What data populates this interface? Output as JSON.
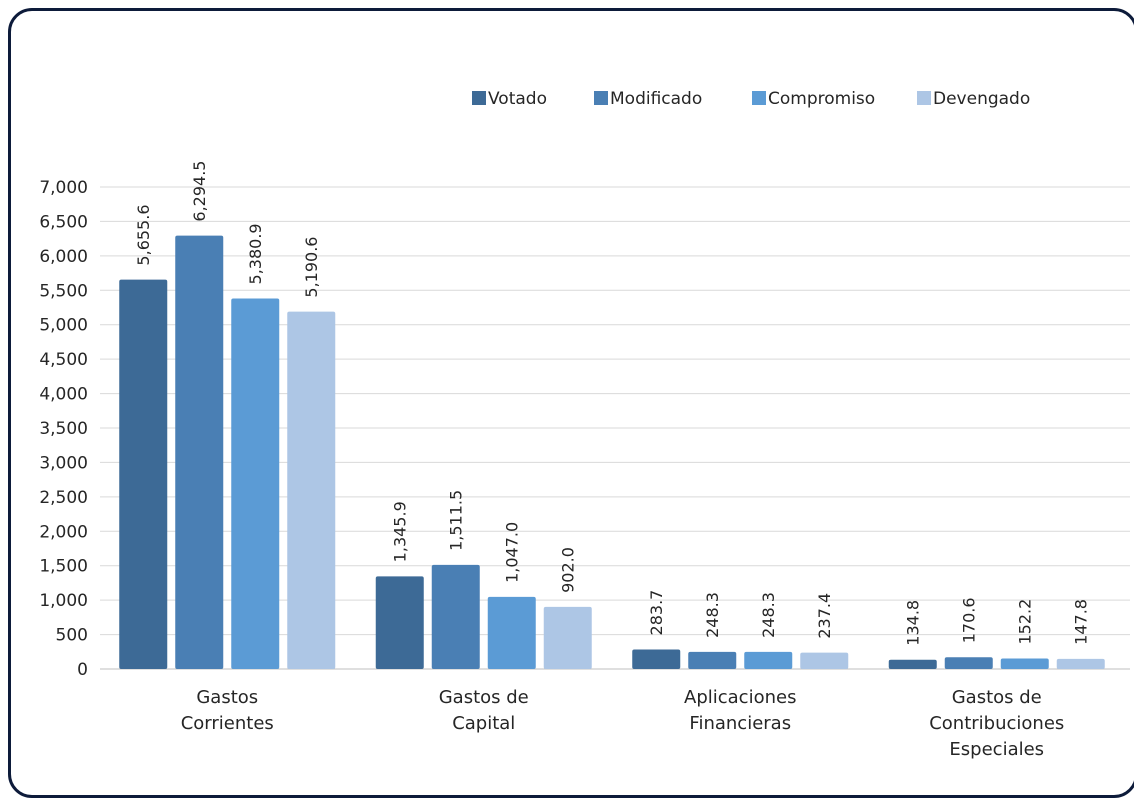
{
  "chart_data": {
    "type": "bar",
    "categories": [
      [
        "Gastos",
        "Corrientes"
      ],
      [
        "Gastos de",
        "Capital"
      ],
      [
        "Aplicaciones",
        "Financieras"
      ],
      [
        "Gastos de",
        "Contribuciones",
        "Especiales"
      ]
    ],
    "series": [
      {
        "name": "Votado",
        "color": "#3d6a96",
        "values": [
          5655.6,
          1345.9,
          283.7,
          134.8
        ],
        "labels": [
          "5,655.6",
          "1,345.9",
          "283.7",
          "134.8"
        ]
      },
      {
        "name": "Modificado",
        "color": "#4a7fb4",
        "values": [
          6294.5,
          1511.5,
          248.3,
          170.6
        ],
        "labels": [
          "6,294.5",
          "1,511.5",
          "248.3",
          "170.6"
        ]
      },
      {
        "name": "Compromiso",
        "color": "#5b9bd5",
        "values": [
          5380.9,
          1047.0,
          248.3,
          152.2
        ],
        "labels": [
          "5,380.9",
          "1,047.0",
          "248.3",
          "152.2"
        ]
      },
      {
        "name": "Devengado",
        "color": "#adc6e5",
        "values": [
          5190.6,
          902.0,
          237.4,
          147.8
        ],
        "labels": [
          "5,190.6",
          "902.0",
          "237.4",
          "147.8"
        ]
      }
    ],
    "yticks": [
      "0",
      "500",
      "1,000",
      "1,500",
      "2,000",
      "2,500",
      "3,000",
      "3,500",
      "4,000",
      "4,500",
      "5,000",
      "5,500",
      "6,000",
      "6,500",
      "7,000"
    ],
    "ylim": [
      0,
      7000
    ],
    "grid": true,
    "legend": "top"
  }
}
